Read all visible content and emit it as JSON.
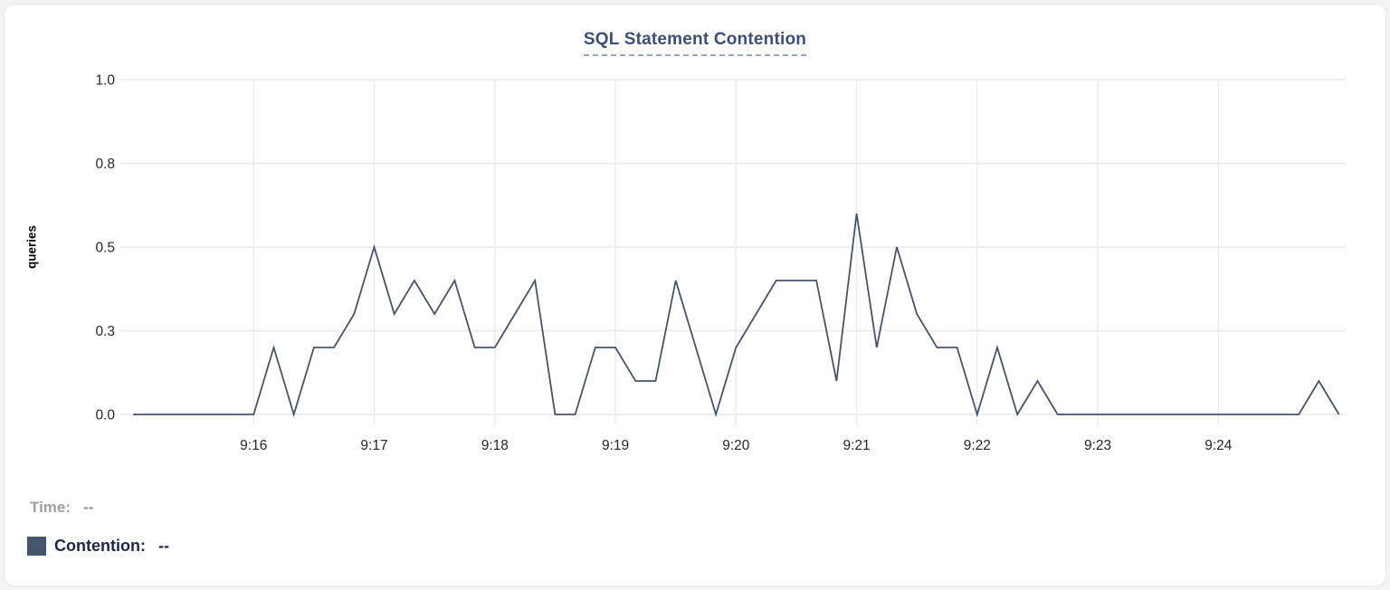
{
  "chart_data": {
    "type": "line",
    "title": "SQL Statement Contention",
    "ylabel": "queries",
    "xlabel": "",
    "ylim": [
      0,
      1
    ],
    "grid": true,
    "line_color": "#45546d",
    "legend_position": "bottom-left",
    "y_ticks": [
      {
        "value": 0,
        "label": "0.0"
      },
      {
        "value": 0.25,
        "label": "0.3"
      },
      {
        "value": 0.5,
        "label": "0.5"
      },
      {
        "value": 0.75,
        "label": "0.8"
      },
      {
        "value": 1.0,
        "label": "1.0"
      }
    ],
    "x_ticks": [
      {
        "label": "9:16",
        "index": 6
      },
      {
        "label": "9:17",
        "index": 12
      },
      {
        "label": "9:18",
        "index": 18
      },
      {
        "label": "9:19",
        "index": 24
      },
      {
        "label": "9:20",
        "index": 30
      },
      {
        "label": "9:21",
        "index": 36
      },
      {
        "label": "9:22",
        "index": 42
      },
      {
        "label": "9:23",
        "index": 48
      },
      {
        "label": "9:24",
        "index": 54
      }
    ],
    "x": [
      "9:15:00",
      "9:15:10",
      "9:15:20",
      "9:15:30",
      "9:15:40",
      "9:15:50",
      "9:16:00",
      "9:16:10",
      "9:16:20",
      "9:16:30",
      "9:16:40",
      "9:16:50",
      "9:17:00",
      "9:17:10",
      "9:17:20",
      "9:17:30",
      "9:17:40",
      "9:17:50",
      "9:18:00",
      "9:18:10",
      "9:18:20",
      "9:18:30",
      "9:18:40",
      "9:18:50",
      "9:19:00",
      "9:19:10",
      "9:19:20",
      "9:19:30",
      "9:19:40",
      "9:19:50",
      "9:20:00",
      "9:20:10",
      "9:20:20",
      "9:20:30",
      "9:20:40",
      "9:20:50",
      "9:21:00",
      "9:21:10",
      "9:21:20",
      "9:21:30",
      "9:21:40",
      "9:21:50",
      "9:22:00",
      "9:22:10",
      "9:22:20",
      "9:22:30",
      "9:22:40",
      "9:22:50",
      "9:23:00",
      "9:23:10",
      "9:23:20",
      "9:23:30",
      "9:23:40",
      "9:23:50",
      "9:24:00",
      "9:24:10",
      "9:24:20",
      "9:24:30",
      "9:24:40",
      "9:24:50",
      "9:25:00"
    ],
    "series": [
      {
        "name": "Contention",
        "values": [
          0,
          0,
          0,
          0,
          0,
          0,
          0,
          0.2,
          0,
          0.2,
          0.2,
          0.3,
          0.5,
          0.3,
          0.4,
          0.3,
          0.4,
          0.2,
          0.2,
          0.3,
          0.4,
          0,
          0,
          0.2,
          0.2,
          0.1,
          0.1,
          0.4,
          0.2,
          0,
          0.2,
          0.3,
          0.4,
          0.4,
          0.4,
          0.1,
          0.6,
          0.2,
          0.5,
          0.3,
          0.2,
          0.2,
          0,
          0.2,
          0,
          0.1,
          0,
          0,
          0,
          0,
          0,
          0,
          0,
          0,
          0,
          0,
          0,
          0,
          0,
          0.1,
          0
        ]
      }
    ]
  },
  "legend": {
    "time_label": "Time:",
    "time_value": "--",
    "contention_label": "Contention:",
    "contention_value": "--",
    "swatch_color": "#45546d"
  }
}
